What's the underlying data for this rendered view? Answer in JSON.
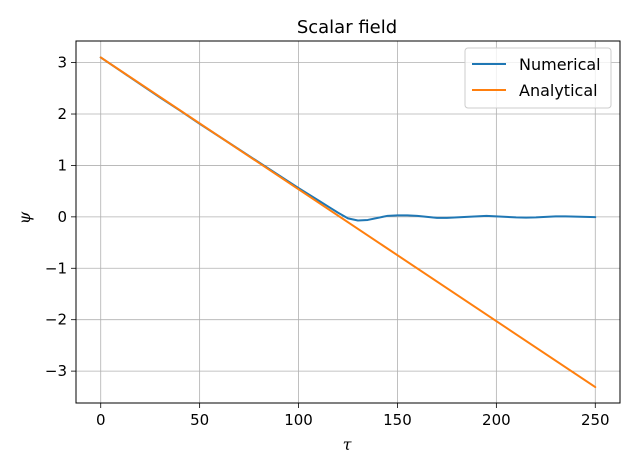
{
  "chart_data": {
    "type": "line",
    "title": "Scalar field",
    "xlabel": "τ",
    "ylabel": "ψ",
    "xlim": [
      -12.5,
      262.5
    ],
    "ylim": [
      -3.62,
      3.42
    ],
    "xticks": [
      0,
      50,
      100,
      150,
      200,
      250
    ],
    "yticks": [
      -3,
      -2,
      -1,
      0,
      1,
      2,
      3
    ],
    "xtick_labels": [
      "0",
      "50",
      "100",
      "150",
      "200",
      "250"
    ],
    "ytick_labels": [
      "−3",
      "−2",
      "−1",
      "0",
      "1",
      "2",
      "3"
    ],
    "grid": true,
    "legend_position": "top-right",
    "series": [
      {
        "name": "Numerical",
        "color": "#1f77b4",
        "x": [
          0,
          10,
          20,
          30,
          40,
          50,
          60,
          70,
          80,
          90,
          100,
          105,
          110,
          115,
          120,
          125,
          130,
          135,
          140,
          145,
          150,
          155,
          160,
          165,
          170,
          175,
          180,
          185,
          190,
          195,
          200,
          205,
          210,
          215,
          220,
          225,
          230,
          235,
          240,
          245,
          250
        ],
        "y": [
          3.1,
          2.84,
          2.58,
          2.32,
          2.07,
          1.81,
          1.56,
          1.31,
          1.06,
          0.81,
          0.56,
          0.44,
          0.32,
          0.2,
          0.08,
          -0.03,
          -0.07,
          -0.06,
          -0.02,
          0.02,
          0.03,
          0.03,
          0.02,
          0.0,
          -0.02,
          -0.02,
          -0.01,
          0.0,
          0.01,
          0.02,
          0.01,
          0.0,
          -0.01,
          -0.015,
          -0.01,
          0.0,
          0.01,
          0.01,
          0.005,
          0.0,
          -0.005
        ]
      },
      {
        "name": "Analytical",
        "color": "#ff7f0e",
        "x": [
          0,
          250
        ],
        "y": [
          3.1,
          -3.31
        ]
      }
    ]
  }
}
